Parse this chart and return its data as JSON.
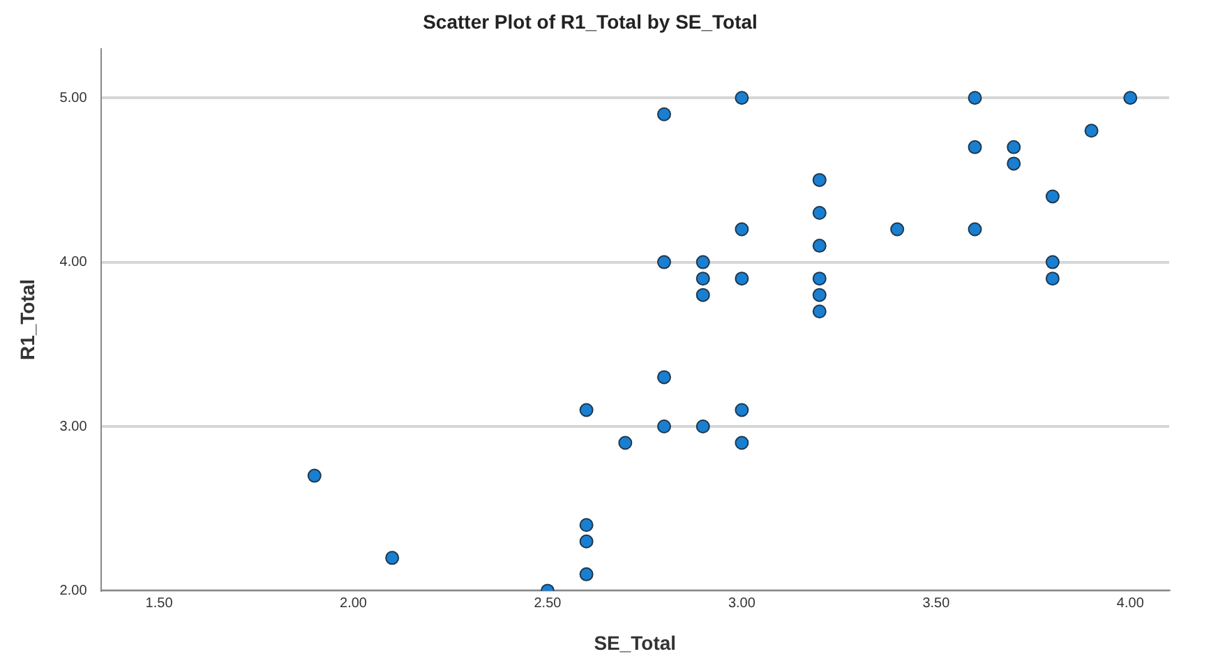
{
  "chart_data": {
    "type": "scatter",
    "title": "Scatter Plot of R1_Total by SE_Total",
    "xlabel": "SE_Total",
    "ylabel": "R1_Total",
    "series": [
      {
        "color": "#1a7fd0",
        "x": [
          1.9,
          2.1,
          2.5,
          2.6,
          2.6,
          2.6,
          2.6,
          2.7,
          2.8,
          2.8,
          2.8,
          2.8,
          2.9,
          2.9,
          2.9,
          2.9,
          3.0,
          3.0,
          3.0,
          3.0,
          3.0,
          3.2,
          3.2,
          3.2,
          3.2,
          3.2,
          3.2,
          3.4,
          3.6,
          3.6,
          3.6,
          3.7,
          3.7,
          3.8,
          3.8,
          3.8,
          3.9,
          4.0
        ],
        "values": [
          2.7,
          2.2,
          2.0,
          3.1,
          2.4,
          2.3,
          2.1,
          2.9,
          4.9,
          4.0,
          3.3,
          3.0,
          4.0,
          3.9,
          3.8,
          3.0,
          5.0,
          4.2,
          3.9,
          3.1,
          2.9,
          4.5,
          4.3,
          4.1,
          3.9,
          3.8,
          3.7,
          4.2,
          5.0,
          4.7,
          4.2,
          4.7,
          4.6,
          4.4,
          4.0,
          3.9,
          4.8,
          5.0
        ]
      }
    ],
    "xlim": [
      1.35,
      4.1
    ],
    "xticks": [
      {
        "value": 1.5,
        "label": "1.50"
      },
      {
        "value": 2,
        "label": "2.00"
      },
      {
        "value": 2.5,
        "label": "2.50"
      },
      {
        "value": 3,
        "label": "3.00"
      },
      {
        "value": 3.5,
        "label": "3.50"
      },
      {
        "value": 4,
        "label": "4.00"
      }
    ],
    "ylim": [
      2,
      5.3
    ],
    "yticks": [
      {
        "value": 2,
        "label": "2.00"
      },
      {
        "value": 3,
        "label": "3.00"
      },
      {
        "value": 4,
        "label": "4.00"
      },
      {
        "value": 5,
        "label": "5.00"
      }
    ],
    "grid": "y",
    "legend": false,
    "marker": "circle"
  }
}
